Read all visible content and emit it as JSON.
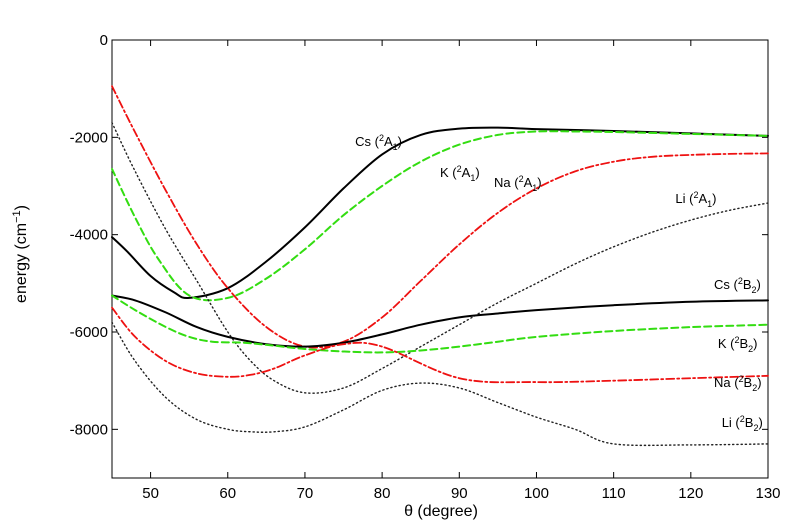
{
  "chart_data": {
    "type": "line",
    "title": "",
    "xlabel": "θ (degree)",
    "ylabel_parts": {
      "base": "energy (cm",
      "sup": "−1",
      "close": ")"
    },
    "xlim": [
      45,
      130
    ],
    "ylim": [
      -9000,
      0
    ],
    "xticks": [
      50,
      60,
      70,
      80,
      90,
      100,
      110,
      120,
      130
    ],
    "yticks": [
      0,
      -2000,
      -4000,
      -6000,
      -8000
    ],
    "ytick_labels": [
      "0",
      "-2000",
      "-4000",
      "-6000",
      "-8000"
    ],
    "series": [
      {
        "name": "Cs (2A1)",
        "label": {
          "pre": "Cs (",
          "sup": "2",
          "main": "A",
          "sub": "1",
          "close": ")",
          "x": 76.5,
          "y": -2180
        },
        "color": "#000000",
        "style": "solid",
        "x": [
          45,
          47,
          50,
          53,
          55,
          60,
          65,
          70,
          75,
          80,
          85,
          90,
          95,
          100,
          110,
          120,
          130
        ],
        "y": [
          -4050,
          -4350,
          -4850,
          -5180,
          -5300,
          -5100,
          -4550,
          -3850,
          -3050,
          -2350,
          -1950,
          -1820,
          -1800,
          -1830,
          -1870,
          -1920,
          -1970
        ]
      },
      {
        "name": "K (2A1)",
        "label": {
          "pre": "K (",
          "sup": "2",
          "main": "A",
          "sub": "1",
          "close": ")",
          "x": 87.5,
          "y": -2820
        },
        "color": "#33dd11",
        "style": "dashed",
        "x": [
          45,
          48,
          51,
          55,
          60,
          65,
          70,
          75,
          80,
          85,
          90,
          95,
          100,
          105,
          110,
          120,
          130
        ],
        "y": [
          -2650,
          -3650,
          -4500,
          -5250,
          -5300,
          -4900,
          -4300,
          -3600,
          -3000,
          -2500,
          -2150,
          -1950,
          -1880,
          -1880,
          -1890,
          -1930,
          -1970
        ]
      },
      {
        "name": "Na (2A1)",
        "label": {
          "pre": "Na (",
          "sup": "2",
          "main": "A",
          "sub": "1",
          "close": ")",
          "x": 94.5,
          "y": -3020
        },
        "color": "#ee1111",
        "style": "dashdot",
        "x": [
          45,
          48,
          52,
          56,
          60,
          65,
          70,
          75,
          80,
          85,
          90,
          95,
          100,
          105,
          110,
          115,
          120,
          125,
          130
        ],
        "y": [
          -950,
          -1900,
          -3100,
          -4200,
          -5100,
          -5900,
          -6300,
          -6200,
          -5700,
          -4950,
          -4200,
          -3550,
          -3050,
          -2700,
          -2500,
          -2400,
          -2360,
          -2340,
          -2330
        ]
      },
      {
        "name": "Li (2A1)",
        "label": {
          "pre": "Li (",
          "sup": "2",
          "main": "A",
          "sub": "1",
          "close": ")",
          "x": 118,
          "y": -3350
        },
        "color": "#222222",
        "style": "dotted",
        "x": [
          45,
          48,
          52,
          56,
          60,
          63,
          66,
          70,
          75,
          80,
          85,
          90,
          95,
          100,
          105,
          110,
          115,
          120,
          125,
          130
        ],
        "y": [
          -1700,
          -2700,
          -3900,
          -4950,
          -6000,
          -6600,
          -7000,
          -7250,
          -7150,
          -6750,
          -6300,
          -5850,
          -5400,
          -5000,
          -4600,
          -4250,
          -3950,
          -3700,
          -3500,
          -3350
        ]
      },
      {
        "name": "Cs (2B2)",
        "label": {
          "pre": "Cs (",
          "sup": "2",
          "main": "B",
          "sub": "2",
          "close": ")",
          "x": 123,
          "y": -5120
        },
        "color": "#000000",
        "style": "solid",
        "x": [
          45,
          48,
          52,
          56,
          60,
          65,
          70,
          75,
          80,
          85,
          90,
          95,
          100,
          110,
          120,
          130
        ],
        "y": [
          -5250,
          -5350,
          -5600,
          -5900,
          -6100,
          -6250,
          -6300,
          -6220,
          -6050,
          -5850,
          -5700,
          -5620,
          -5550,
          -5450,
          -5380,
          -5350
        ]
      },
      {
        "name": "K (2B2)",
        "label": {
          "pre": "K (",
          "sup": "2",
          "main": "B",
          "sub": "2",
          "close": ")",
          "x": 123.5,
          "y": -6330
        },
        "color": "#33dd11",
        "style": "dashed",
        "x": [
          45,
          48,
          52,
          55,
          58,
          62,
          66,
          70,
          75,
          80,
          85,
          90,
          95,
          100,
          110,
          120,
          130
        ],
        "y": [
          -5250,
          -5550,
          -5900,
          -6100,
          -6200,
          -6220,
          -6280,
          -6350,
          -6400,
          -6420,
          -6380,
          -6300,
          -6200,
          -6100,
          -5980,
          -5900,
          -5850
        ]
      },
      {
        "name": "Na (2B2)",
        "label": {
          "pre": "Na (",
          "sup": "2",
          "main": "B",
          "sub": "2",
          "close": ")",
          "x": 123,
          "y": -7130
        },
        "color": "#ee1111",
        "style": "dashdot",
        "x": [
          45,
          48,
          52,
          56,
          60,
          63,
          66,
          70,
          75,
          80,
          90,
          100,
          110,
          120,
          130
        ],
        "y": [
          -5500,
          -6100,
          -6600,
          -6850,
          -6920,
          -6880,
          -6750,
          -6480,
          -6250,
          -6300,
          -6950,
          -7030,
          -7000,
          -6950,
          -6900
        ]
      },
      {
        "name": "Li (2B2)",
        "label": {
          "pre": "Li (",
          "sup": "2",
          "main": "B",
          "sub": "2",
          "close": ")",
          "x": 124,
          "y": -7950
        },
        "color": "#222222",
        "style": "dotted",
        "x": [
          45,
          48,
          52,
          56,
          60,
          63,
          66,
          70,
          75,
          80,
          85,
          90,
          95,
          100,
          105,
          110,
          120,
          130
        ],
        "y": [
          -5800,
          -6600,
          -7350,
          -7800,
          -8000,
          -8050,
          -8050,
          -7950,
          -7600,
          -7200,
          -7050,
          -7150,
          -7450,
          -7750,
          -8000,
          -8300,
          -8320,
          -8300
        ]
      }
    ]
  }
}
